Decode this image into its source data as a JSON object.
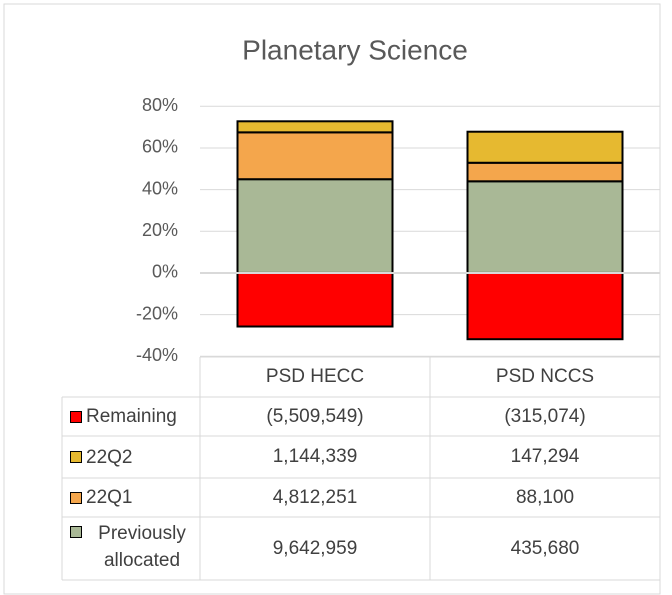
{
  "chart_data": {
    "type": "stacked_bar",
    "title": "Planetary Science",
    "categories": [
      "PSD HECC",
      "PSD NCCS"
    ],
    "series": [
      {
        "name": "Remaining",
        "color": "#ff0000",
        "values": [
          -25.7,
          -31.8
        ],
        "table": [
          "(5,509,549)",
          "(315,074)"
        ]
      },
      {
        "name": "22Q2",
        "color": "#e6b930",
        "values": [
          5.3,
          14.9
        ],
        "table": [
          "1,144,339",
          "147,294"
        ]
      },
      {
        "name": "22Q1",
        "color": "#f4a64c",
        "values": [
          22.5,
          8.9
        ],
        "table": [
          "4,812,251",
          "88,100"
        ]
      },
      {
        "name": "Previously allocated",
        "color": "#a9b896",
        "values": [
          45.0,
          44.0
        ],
        "table": [
          "9,642,959",
          "435,680"
        ]
      }
    ],
    "ylim": [
      -40,
      80
    ],
    "yticks": [
      {
        "value": -40,
        "label": "-40%"
      },
      {
        "value": -20,
        "label": "-20%"
      },
      {
        "value": 0,
        "label": "0%"
      },
      {
        "value": 20,
        "label": "20%"
      },
      {
        "value": 40,
        "label": "40%"
      },
      {
        "value": 60,
        "label": "60%"
      },
      {
        "value": 80,
        "label": "80%"
      }
    ],
    "grid": true
  }
}
